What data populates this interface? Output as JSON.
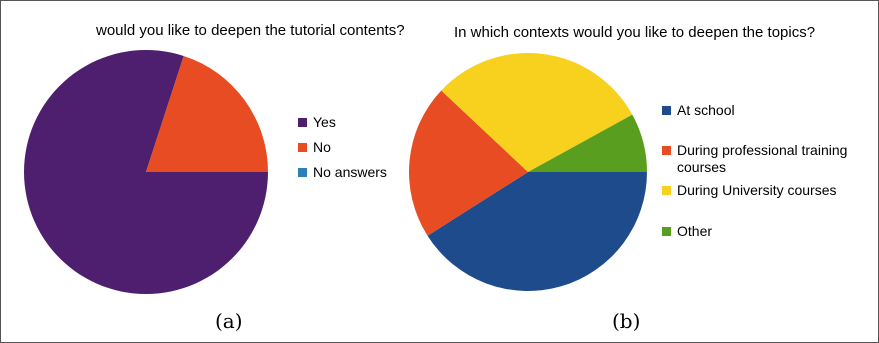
{
  "chart_data": [
    {
      "type": "pie",
      "title": "would you like to deepen the tutorial contents?",
      "caption": "(a)",
      "legend_position": "right",
      "slices": [
        {
          "label": "Yes",
          "value": 80,
          "color": "#4e1f6e"
        },
        {
          "label": "No",
          "value": 20,
          "color": "#e84c22"
        },
        {
          "label": "No answers",
          "value": 0,
          "color": "#2e7fb5"
        }
      ]
    },
    {
      "type": "pie",
      "title": "In which contexts would you like to deepen the topics?",
      "caption": "(b)",
      "legend_position": "right",
      "slices": [
        {
          "label": "At school",
          "value": 41,
          "color": "#1e4b8c"
        },
        {
          "label": "During professional training courses",
          "value": 21,
          "color": "#e84c22"
        },
        {
          "label": "During University courses",
          "value": 30,
          "color": "#f7d11e"
        },
        {
          "label": "Other",
          "value": 8,
          "color": "#5a9e20"
        }
      ]
    }
  ]
}
